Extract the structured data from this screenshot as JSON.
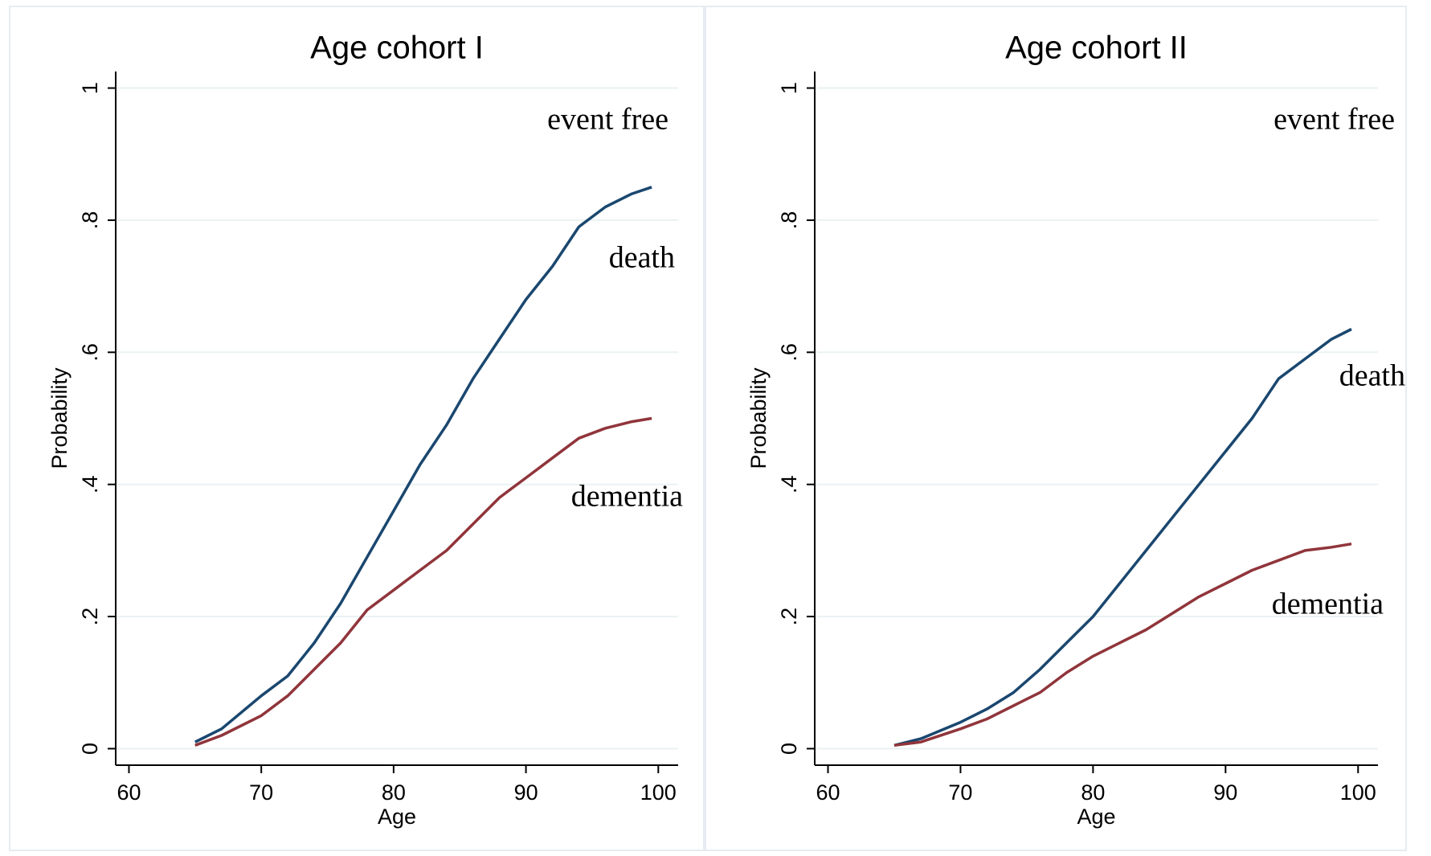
{
  "chart_data": [
    {
      "type": "line",
      "title": "Age cohort I",
      "xlabel": "Age",
      "ylabel": "Probability",
      "annotation": "event free",
      "x": [
        65,
        67,
        70,
        72,
        74,
        76,
        78,
        80,
        82,
        84,
        86,
        88,
        90,
        92,
        94,
        96,
        98,
        99.5
      ],
      "series": [
        {
          "name": "death",
          "color": "#1a476f",
          "values": [
            0.01,
            0.03,
            0.08,
            0.11,
            0.16,
            0.22,
            0.29,
            0.36,
            0.43,
            0.49,
            0.56,
            0.62,
            0.68,
            0.73,
            0.79,
            0.82,
            0.84,
            0.85
          ]
        },
        {
          "name": "dementia",
          "color": "#90353b",
          "values": [
            0.005,
            0.02,
            0.05,
            0.08,
            0.12,
            0.16,
            0.21,
            0.24,
            0.27,
            0.3,
            0.34,
            0.38,
            0.41,
            0.44,
            0.47,
            0.485,
            0.495,
            0.5
          ]
        }
      ],
      "xlim": [
        59,
        101.5
      ],
      "xticks": [
        60,
        70,
        80,
        90,
        100
      ],
      "ylim": [
        -0.025,
        1.025
      ],
      "yticks": [
        0,
        {
          "value": 0.2,
          "label": ".2"
        },
        {
          "value": 0.4,
          "label": ".4"
        },
        {
          "value": 0.6,
          "label": ".6"
        },
        {
          "value": 0.8,
          "label": ".8"
        },
        1
      ],
      "grid": true
    },
    {
      "type": "line",
      "title": "Age cohort II",
      "xlabel": "Age",
      "ylabel": "Probability",
      "annotation": "event free",
      "x": [
        65,
        67,
        70,
        72,
        74,
        76,
        78,
        80,
        82,
        84,
        86,
        88,
        90,
        92,
        94,
        96,
        98,
        99.5
      ],
      "series": [
        {
          "name": "death",
          "color": "#1a476f",
          "values": [
            0.005,
            0.015,
            0.04,
            0.06,
            0.085,
            0.12,
            0.16,
            0.2,
            0.25,
            0.3,
            0.35,
            0.4,
            0.45,
            0.5,
            0.56,
            0.59,
            0.62,
            0.635
          ]
        },
        {
          "name": "dementia",
          "color": "#90353b",
          "values": [
            0.005,
            0.01,
            0.03,
            0.045,
            0.065,
            0.085,
            0.115,
            0.14,
            0.16,
            0.18,
            0.205,
            0.23,
            0.25,
            0.27,
            0.285,
            0.3,
            0.305,
            0.31
          ]
        }
      ],
      "xlim": [
        59,
        101.5
      ],
      "xticks": [
        60,
        70,
        80,
        90,
        100
      ],
      "ylim": [
        -0.025,
        1.025
      ],
      "yticks": [
        0,
        {
          "value": 0.2,
          "label": ".2"
        },
        {
          "value": 0.4,
          "label": ".4"
        },
        {
          "value": 0.6,
          "label": ".6"
        },
        {
          "value": 0.8,
          "label": ".8"
        },
        1
      ],
      "grid": true
    }
  ]
}
